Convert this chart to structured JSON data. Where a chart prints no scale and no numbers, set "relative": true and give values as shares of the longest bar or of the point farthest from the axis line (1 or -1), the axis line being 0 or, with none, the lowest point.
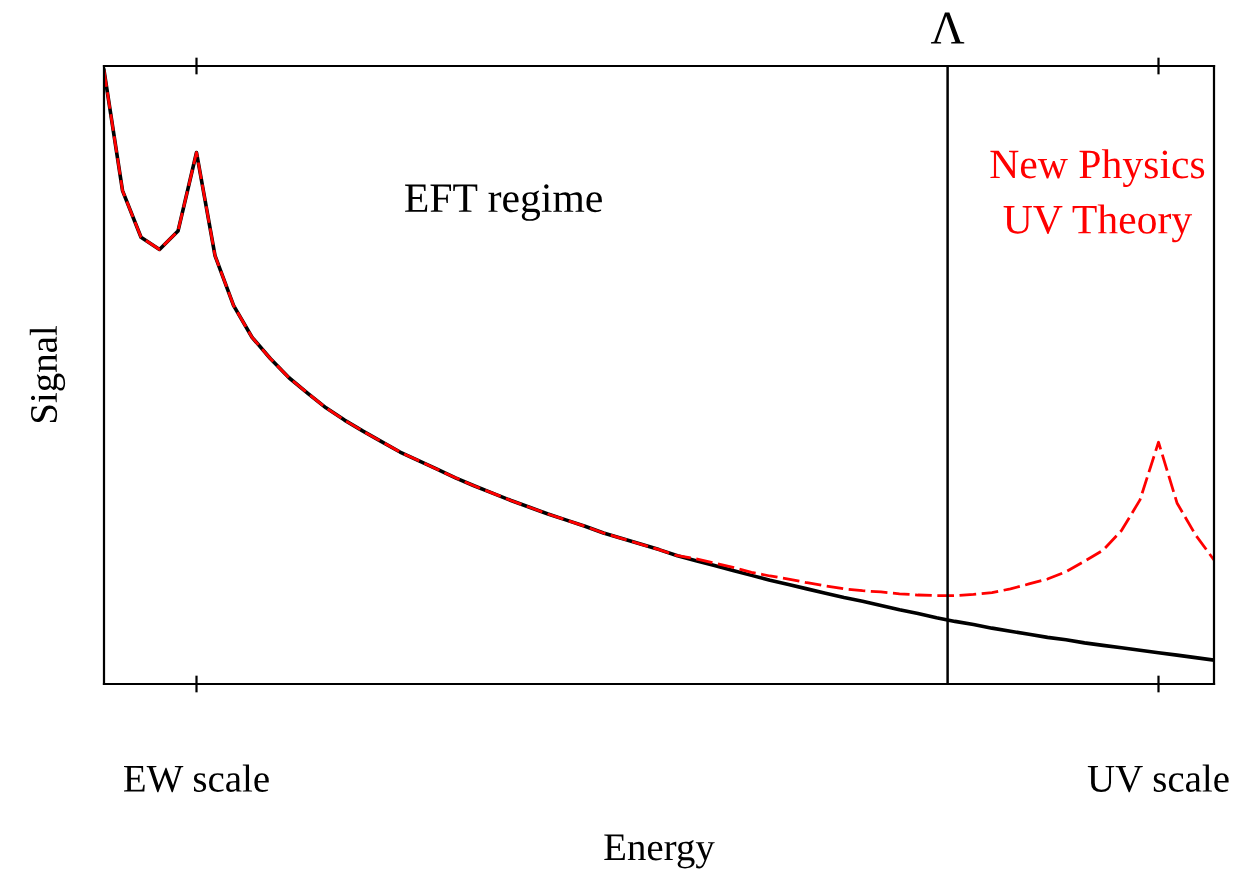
{
  "chart_data": {
    "type": "line",
    "relative": true,
    "xlabel": "Energy",
    "ylabel": "Signal",
    "categories": [
      null,
      null,
      null,
      null,
      null,
      "EW scale",
      null,
      null,
      null,
      null,
      null,
      null,
      null,
      null,
      null,
      null,
      null,
      null,
      null,
      null,
      null,
      null,
      null,
      null,
      null,
      null,
      null,
      null,
      null,
      null,
      null,
      null,
      null,
      null,
      null,
      null,
      null,
      null,
      null,
      null,
      null,
      null,
      null,
      null,
      null,
      null,
      null,
      null,
      null,
      null,
      null,
      null,
      null,
      null,
      null,
      null,
      null,
      "UV scale",
      null,
      null,
      null
    ],
    "annotations": [
      "EFT regime",
      "New Physics\nUV Theory",
      "Λ"
    ],
    "series": [
      {
        "color": "#000000",
        "line_style": "solid",
        "values": [
          1.0,
          0.804,
          0.728,
          0.708,
          0.738,
          0.866,
          0.698,
          0.617,
          0.565,
          0.53,
          0.499,
          0.474,
          0.45,
          0.43,
          0.412,
          0.395,
          0.378,
          0.364,
          0.35,
          0.336,
          0.323,
          0.311,
          0.299,
          0.288,
          0.277,
          0.267,
          0.257,
          0.246,
          0.237,
          0.228,
          0.219,
          0.209,
          0.201,
          0.193,
          0.185,
          0.177,
          0.169,
          0.162,
          0.155,
          0.148,
          0.141,
          0.135,
          0.128,
          0.121,
          0.115,
          0.108,
          0.102,
          0.097,
          0.091,
          0.086,
          0.081,
          0.076,
          0.072,
          0.067,
          0.063,
          0.059,
          0.055,
          0.051,
          0.047,
          0.043,
          0.039
        ]
      },
      {
        "color": "#ff0000",
        "line_style": "dashed",
        "values": [
          1.0,
          0.804,
          0.728,
          0.708,
          0.738,
          0.866,
          0.698,
          0.617,
          0.565,
          0.53,
          0.499,
          0.474,
          0.45,
          0.43,
          0.412,
          0.395,
          0.378,
          0.364,
          0.35,
          0.336,
          0.323,
          0.311,
          0.299,
          0.288,
          0.277,
          0.267,
          0.257,
          0.246,
          0.237,
          0.228,
          0.219,
          0.209,
          0.204,
          0.197,
          0.19,
          0.182,
          0.176,
          0.171,
          0.165,
          0.16,
          0.155,
          0.152,
          0.15,
          0.147,
          0.145,
          0.144,
          0.144,
          0.146,
          0.149,
          0.155,
          0.163,
          0.171,
          0.183,
          0.2,
          0.218,
          0.25,
          0.3,
          0.394,
          0.295,
          0.243,
          0.202
        ]
      }
    ]
  }
}
